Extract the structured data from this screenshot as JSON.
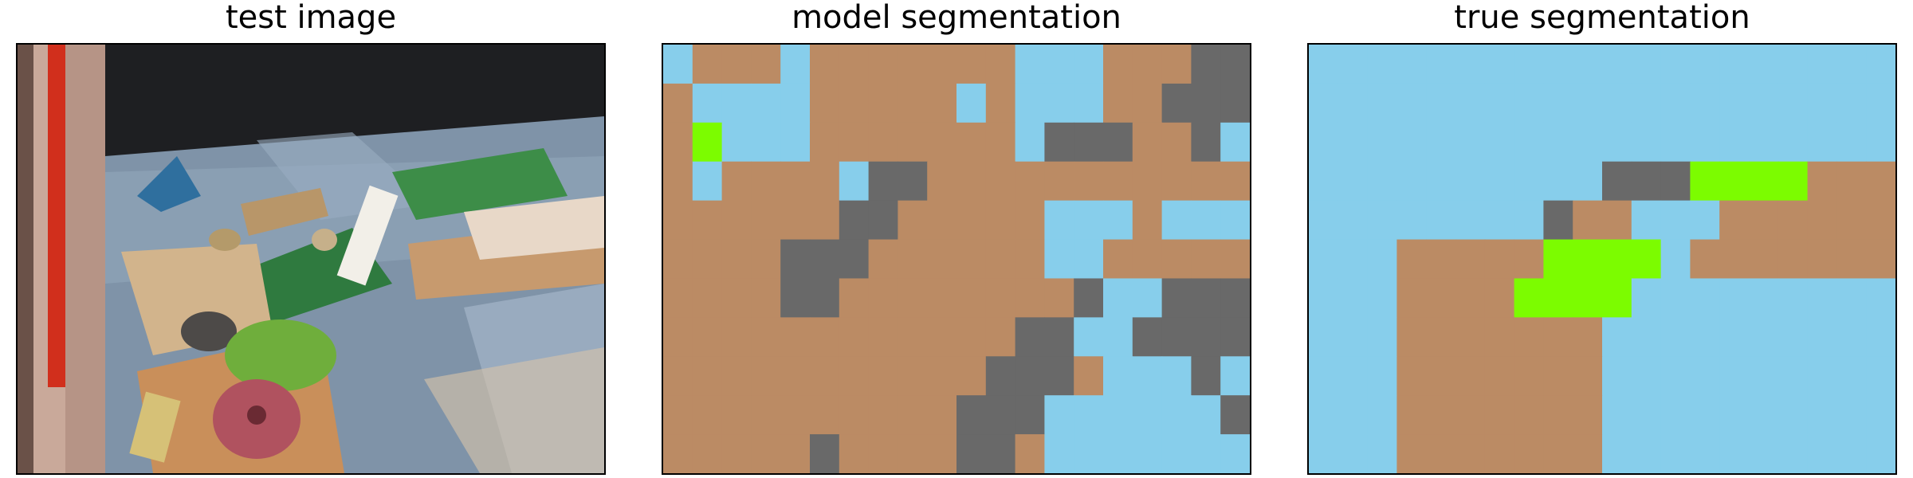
{
  "panels": [
    {
      "title": "test image"
    },
    {
      "title": "model segmentation"
    },
    {
      "title": "true segmentation"
    }
  ],
  "colors": {
    "class_a": "#bb8b64",
    "class_b": "#87ceeb",
    "class_c": "#696969",
    "class_d": "#7cfc00"
  },
  "segmentation_grid": {
    "rows": 11,
    "cols": 20
  },
  "model_segmentation": [
    "BAAABAAAAAAABBBAAACC",
    "ABBBBAAAAABAB BAACCC",
    "ADBBBAAAAAAABCCCAACB",
    "ABAAAABCCAAAAAAAAAAA",
    "AAAAAACCAAAAABBBABBB",
    "AAAACCCAAAAAABBAAAAA",
    "AAAACCAAAAAAAACBBCCC",
    "AAAAAAAAAAAACCBBCCCC",
    "AAAAAAAAAAACCCABBBCB",
    "AAAAAAAAAACCCBBBBBBC",
    "AAAAACAAAACCABBBBBBB"
  ],
  "true_segmentation": [
    "BBBBBBBBBBBBBBBBBBBB",
    "BBBBBBBBBBBBBBBBBBBB",
    "BBBBBBBBBBBBBBBBBBBB",
    "BBBBBBBBBBCCCDDDDAAA",
    "BBBBBBBBCAABBBAAAAAA",
    "BBBAAAAADDDDBAAAAAAA",
    "BBBAAAADDDDBBBBBBBBB",
    "BBBAAAAAAABBBBBBBBBB",
    "BBBAAAAAAABBBBBBBBBB",
    "BBBAAAAAAABBBBBBBBBB",
    "BBBAAAAAAABBBBBBBBBB"
  ]
}
